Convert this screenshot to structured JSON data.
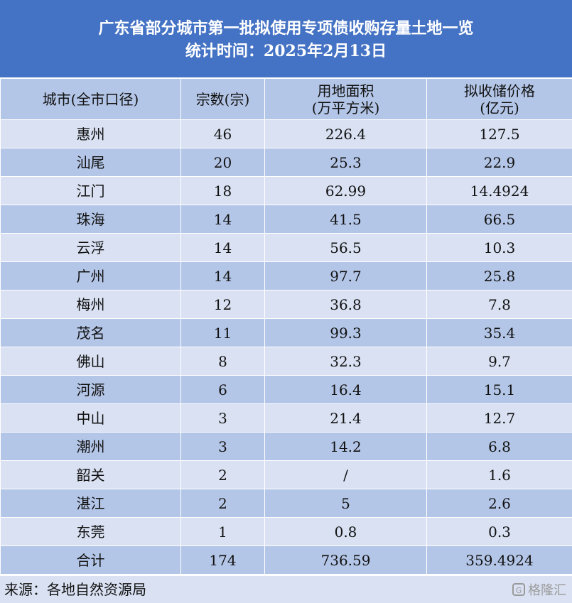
{
  "header": {
    "title": "广东省部分城市第一批拟使用专项债收购存量土地一览",
    "subtitle": "统计时间：2025年2月13日"
  },
  "table": {
    "columns": [
      "城市(全市口径)",
      "宗数(宗)",
      "用地面积\n(万平方米)",
      "拟收储价格\n(亿元)"
    ],
    "rows": [
      [
        "惠州",
        "46",
        "226.4",
        "127.5"
      ],
      [
        "汕尾",
        "20",
        "25.3",
        "22.9"
      ],
      [
        "江门",
        "18",
        "62.99",
        "14.4924"
      ],
      [
        "珠海",
        "14",
        "41.5",
        "66.5"
      ],
      [
        "云浮",
        "14",
        "56.5",
        "10.3"
      ],
      [
        "广州",
        "14",
        "97.7",
        "25.8"
      ],
      [
        "梅州",
        "12",
        "36.8",
        "7.8"
      ],
      [
        "茂名",
        "11",
        "99.3",
        "35.4"
      ],
      [
        "佛山",
        "8",
        "32.3",
        "9.7"
      ],
      [
        "河源",
        "6",
        "16.4",
        "15.1"
      ],
      [
        "中山",
        "3",
        "21.4",
        "12.7"
      ],
      [
        "潮州",
        "3",
        "14.2",
        "6.8"
      ],
      [
        "韶关",
        "2",
        "/",
        "1.6"
      ],
      [
        "湛江",
        "2",
        "5",
        "2.6"
      ],
      [
        "东莞",
        "1",
        "0.8",
        "0.3"
      ]
    ],
    "total": [
      "合计",
      "174",
      "736.59",
      "359.4924"
    ]
  },
  "footer": {
    "source": "来源：各地自然资源局"
  },
  "watermark": {
    "text": "格隆汇",
    "icon": "gelonghui-logo-icon"
  },
  "colors": {
    "header_bg": "#4472c4",
    "row_light": "#d9e1f2",
    "row_dark": "#b4c6e7"
  }
}
